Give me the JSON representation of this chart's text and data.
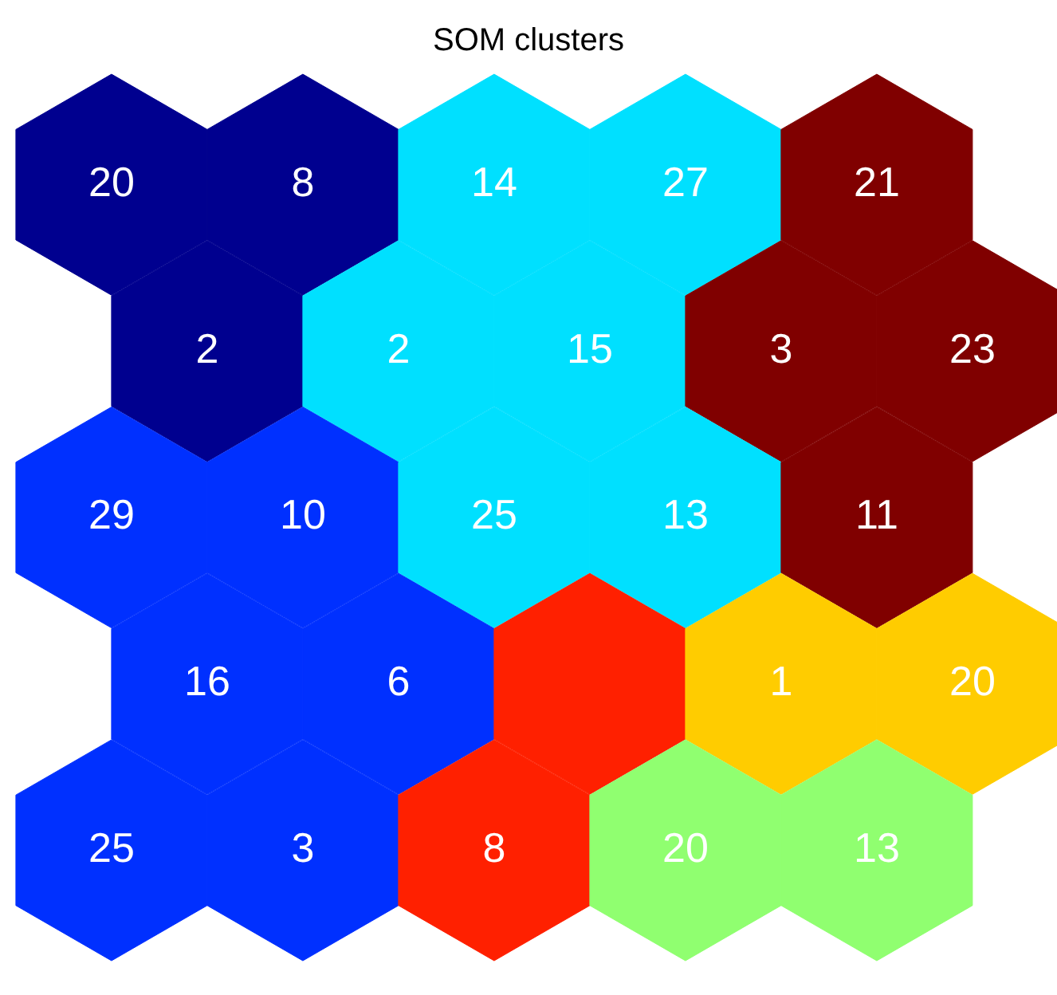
{
  "chart_data": {
    "type": "other",
    "title": "SOM clusters",
    "data_labels": true,
    "values": [
      20,
      8,
      14,
      27,
      21,
      2,
      2,
      15,
      3,
      23,
      29,
      10,
      25,
      13,
      11,
      16,
      6,
      null,
      1,
      20,
      25,
      3,
      8,
      20,
      13
    ],
    "colors": [
      "#00008f",
      "#00008f",
      "#00e0ff",
      "#00e0ff",
      "#800000",
      "#00008f",
      "#00e0ff",
      "#00e0ff",
      "#800000",
      "#800000",
      "#0030ff",
      "#0030ff",
      "#00e0ff",
      "#00e0ff",
      "#800000",
      "#0030ff",
      "#0030ff",
      "#ff2000",
      "#ffcc00",
      "#ffcc00",
      "#0030ff",
      "#0030ff",
      "#ff2000",
      "#90ff70",
      "#90ff70"
    ]
  }
}
